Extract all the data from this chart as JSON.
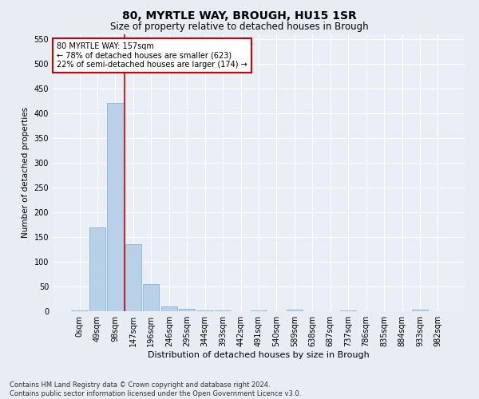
{
  "title1": "80, MYRTLE WAY, BROUGH, HU15 1SR",
  "title2": "Size of property relative to detached houses in Brough",
  "xlabel": "Distribution of detached houses by size in Brough",
  "ylabel": "Number of detached properties",
  "footnote": "Contains HM Land Registry data © Crown copyright and database right 2024.\nContains public sector information licensed under the Open Government Licence v3.0.",
  "bin_labels": [
    "0sqm",
    "49sqm",
    "98sqm",
    "147sqm",
    "196sqm",
    "246sqm",
    "295sqm",
    "344sqm",
    "393sqm",
    "442sqm",
    "491sqm",
    "540sqm",
    "589sqm",
    "638sqm",
    "687sqm",
    "737sqm",
    "786sqm",
    "835sqm",
    "884sqm",
    "933sqm",
    "982sqm"
  ],
  "bar_values": [
    2,
    170,
    420,
    135,
    55,
    10,
    5,
    1,
    1,
    0,
    1,
    0,
    3,
    0,
    0,
    1,
    0,
    0,
    0,
    3,
    0
  ],
  "bar_color": "#b8d0e8",
  "bar_edge_color": "#7aaace",
  "subject_line_color": "#cc0000",
  "annotation_text": "80 MYRTLE WAY: 157sqm\n← 78% of detached houses are smaller (623)\n22% of semi-detached houses are larger (174) →",
  "annotation_box_color": "#ffffff",
  "annotation_box_edge": "#cc0000",
  "ylim": [
    0,
    560
  ],
  "yticks": [
    0,
    50,
    100,
    150,
    200,
    250,
    300,
    350,
    400,
    450,
    500,
    550
  ],
  "bg_color": "#e8edf4",
  "plot_bg_color": "#eaeff7",
  "grid_color": "#ffffff",
  "title1_fontsize": 10,
  "title2_fontsize": 8.5,
  "xlabel_fontsize": 8,
  "ylabel_fontsize": 7.5,
  "tick_fontsize": 7,
  "annot_fontsize": 7,
  "footnote_fontsize": 6
}
